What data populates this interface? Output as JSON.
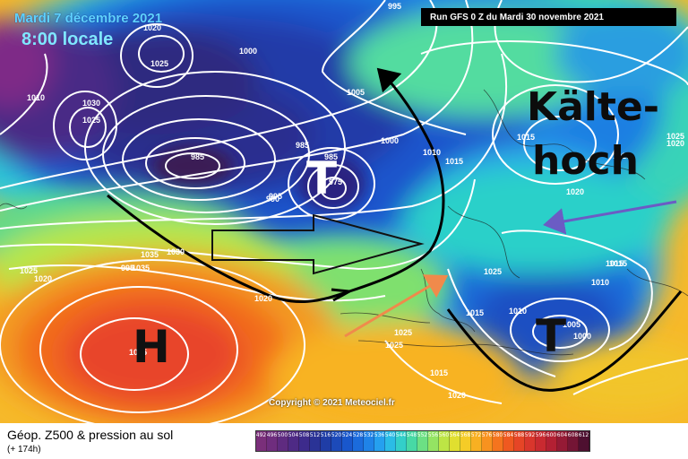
{
  "header": {
    "date": "Mardi 7 décembre 2021",
    "time": "8:00 locale",
    "run": "Run GFS 0 Z du Mardi 30 novembre 2021"
  },
  "copyright": "Copyright © 2021 Meteociel.fr",
  "annotations": {
    "kaelte_line1": "Kälte-",
    "kaelte_line2": "hoch",
    "low_north": "T",
    "low_east": "T",
    "high_southwest": "H"
  },
  "pressure_labels": [
    {
      "text": "1020"
    },
    {
      "text": "1025"
    },
    {
      "text": "1030"
    },
    {
      "text": "1025"
    },
    {
      "text": "1010"
    },
    {
      "text": "1000"
    },
    {
      "text": "1005"
    },
    {
      "text": "995"
    },
    {
      "text": "995"
    },
    {
      "text": "1000"
    },
    {
      "text": "1010"
    },
    {
      "text": "1015"
    },
    {
      "text": "985"
    },
    {
      "text": "985"
    },
    {
      "text": "985"
    },
    {
      "text": "975"
    },
    {
      "text": "990"
    },
    {
      "text": "995"
    },
    {
      "text": "1035"
    },
    {
      "text": "1030"
    },
    {
      "text": "1025"
    },
    {
      "text": "1020"
    },
    {
      "text": "1015"
    },
    {
      "text": "1020"
    },
    {
      "text": "1025"
    },
    {
      "text": "1025"
    },
    {
      "text": "1020"
    },
    {
      "text": "1025"
    },
    {
      "text": "1010"
    },
    {
      "text": "1015"
    },
    {
      "text": "1015"
    },
    {
      "text": "1010"
    },
    {
      "text": "1005"
    },
    {
      "text": "1000"
    },
    {
      "text": "1015"
    },
    {
      "text": "1020"
    },
    {
      "text": "1025"
    },
    {
      "text": "1025"
    },
    {
      "text": "1020"
    },
    {
      "text": "1035"
    },
    {
      "text": "1035"
    },
    {
      "text": "1015"
    }
  ],
  "legend": {
    "title": "Géop. Z500 & pression au sol",
    "subtitle": "(+ 174h)",
    "scale": [
      {
        "v": "492",
        "c": "#7a2f7a"
      },
      {
        "v": "496",
        "c": "#6f2d7e"
      },
      {
        "v": "500",
        "c": "#5f2b80"
      },
      {
        "v": "504",
        "c": "#4e2a85"
      },
      {
        "v": "508",
        "c": "#3d2b8c"
      },
      {
        "v": "512",
        "c": "#2a3396"
      },
      {
        "v": "516",
        "c": "#1f3da6"
      },
      {
        "v": "520",
        "c": "#1c4ab9"
      },
      {
        "v": "524",
        "c": "#1957cc"
      },
      {
        "v": "528",
        "c": "#1b6bdc"
      },
      {
        "v": "532",
        "c": "#1f83e8"
      },
      {
        "v": "536",
        "c": "#25a0ef"
      },
      {
        "v": "540",
        "c": "#2bbce6"
      },
      {
        "v": "544",
        "c": "#33cfc9"
      },
      {
        "v": "548",
        "c": "#47d9a5"
      },
      {
        "v": "552",
        "c": "#6ce084"
      },
      {
        "v": "556",
        "c": "#94e463"
      },
      {
        "v": "560",
        "c": "#bde545"
      },
      {
        "v": "564",
        "c": "#e0df2f"
      },
      {
        "v": "568",
        "c": "#f5cc27"
      },
      {
        "v": "572",
        "c": "#f8b022"
      },
      {
        "v": "576",
        "c": "#f8921f"
      },
      {
        "v": "580",
        "c": "#f5741e"
      },
      {
        "v": "584",
        "c": "#ef5920"
      },
      {
        "v": "588",
        "c": "#e64526"
      },
      {
        "v": "592",
        "c": "#d9362c"
      },
      {
        "v": "596",
        "c": "#c92a30"
      },
      {
        "v": "600",
        "c": "#b32033"
      },
      {
        "v": "604",
        "c": "#951a35"
      },
      {
        "v": "608",
        "c": "#741535"
      },
      {
        "v": "612",
        "c": "#4e1030"
      }
    ]
  },
  "colors": {
    "low_core": "#3b1f5a",
    "deep_blue": "#1c3cb8",
    "high_core": "#e63b2e",
    "annotation_orange": "#f08a4b",
    "annotation_purple": "#6b5cc4",
    "front_black": "#000000"
  }
}
